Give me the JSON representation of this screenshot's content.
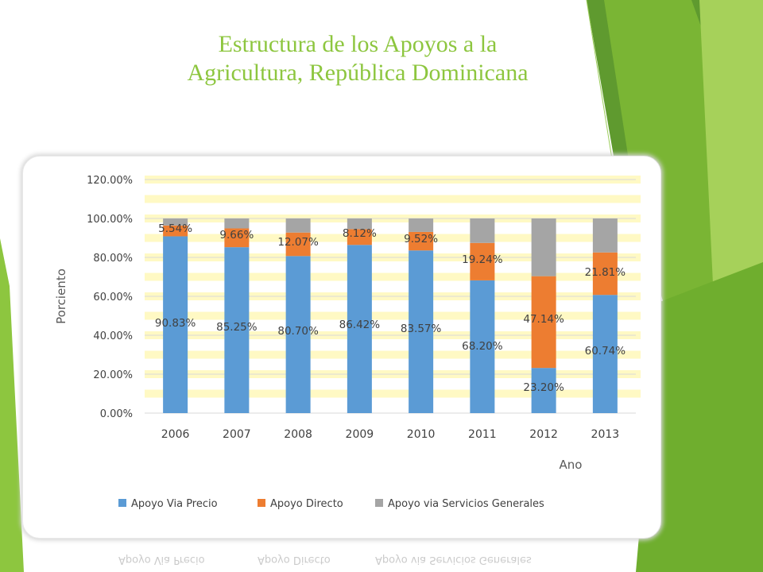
{
  "slide": {
    "title_line1": "Estructura de los Apoyos a la",
    "title_line2": "Agricultura, República Dominicana"
  },
  "colors": {
    "title": "#8dc63f",
    "decor_green_dark": "#5f9a2f",
    "decor_green": "#7ab534",
    "decor_green_light": "#a6d15a",
    "gridband": "#fff9c4"
  },
  "chart_data": {
    "type": "bar",
    "stacked": true,
    "title": "",
    "xlabel": "Ano",
    "ylabel": "Porciento",
    "ylim": [
      0,
      120
    ],
    "ytick_values": [
      0,
      20,
      40,
      60,
      80,
      100,
      120
    ],
    "yticks": [
      "0.00%",
      "20.00%",
      "40.00%",
      "60.00%",
      "80.00%",
      "100.00%",
      "120.00%"
    ],
    "categories": [
      "2006",
      "2007",
      "2008",
      "2009",
      "2010",
      "2011",
      "2012",
      "2013"
    ],
    "series": [
      {
        "name": "Apoyo Via Precio",
        "color": "#5b9bd5",
        "values": [
          90.83,
          85.25,
          80.7,
          86.42,
          83.57,
          68.2,
          23.2,
          60.74
        ],
        "labels": [
          "90.83%",
          "85.25%",
          "80.70%",
          "86.42%",
          "83.57%",
          "68.20%",
          "23.20%",
          "60.74%"
        ]
      },
      {
        "name": "Apoyo Directo",
        "color": "#ed7d31",
        "values": [
          5.54,
          9.66,
          12.07,
          8.12,
          9.52,
          19.24,
          47.14,
          21.81
        ],
        "labels": [
          "5.54%",
          "9.66%",
          "12.07%",
          "8.12%",
          "9.52%",
          "19.24%",
          "47.14%",
          "21.81%"
        ]
      },
      {
        "name": "Apoyo via Servicios Generales",
        "color": "#a5a5a5",
        "values": [
          3.63,
          5.09,
          7.23,
          5.46,
          6.91,
          12.56,
          29.66,
          17.45
        ],
        "labels": []
      }
    ],
    "legend_position": "bottom",
    "grid": true
  }
}
